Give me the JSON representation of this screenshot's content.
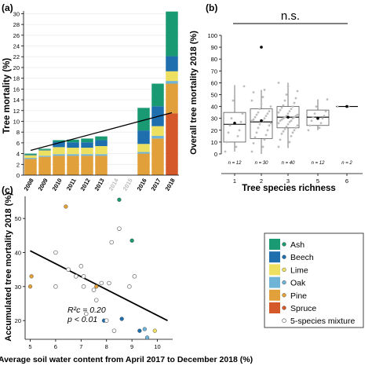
{
  "chart_data": [
    {
      "panel_label": "(a)",
      "type": "bar",
      "stacked": true,
      "ylabel": "Tree mortality (%)",
      "yticks": [
        "0",
        "2",
        "4",
        "6",
        "8",
        "10",
        "12",
        "14",
        "16",
        "18",
        "20",
        "22",
        "24",
        "26",
        "28",
        "30"
      ],
      "ylim": [
        0,
        30.5
      ],
      "categories": [
        "2008",
        "2009",
        "2010",
        "2011",
        "2012",
        "2013",
        "2014",
        "2015",
        "2016",
        "2017",
        "2018"
      ],
      "greyed_categories": [
        "2014",
        "2015"
      ],
      "series": [
        {
          "name": "Spruce",
          "color": "#d4582a",
          "values": [
            0,
            0,
            0,
            0,
            0,
            0,
            0,
            0,
            0,
            0,
            11.5
          ]
        },
        {
          "name": "Pine",
          "color": "#e2a03a",
          "values": [
            3.0,
            3.4,
            3.6,
            3.6,
            3.6,
            3.6,
            0,
            0,
            4.0,
            6.8,
            5.5
          ]
        },
        {
          "name": "Oak",
          "color": "#6fb3d6",
          "values": [
            0.2,
            0.2,
            0.3,
            0.3,
            0.3,
            0.3,
            0,
            0,
            0.3,
            0.5,
            0.5
          ]
        },
        {
          "name": "Lime",
          "color": "#ede060",
          "values": [
            0.5,
            1.0,
            1.3,
            1.2,
            1.2,
            1.5,
            0,
            0,
            1.5,
            1.8,
            1.8
          ]
        },
        {
          "name": "Beech",
          "color": "#1f6fae",
          "values": [
            0.1,
            0.1,
            1.0,
            1.0,
            1.0,
            1.1,
            0,
            0,
            2.5,
            3.7,
            2.8
          ]
        },
        {
          "name": "Ash",
          "color": "#1a9a72",
          "values": [
            0.2,
            0.2,
            0.3,
            0.5,
            0.7,
            0.7,
            0,
            0,
            4.2,
            4.2,
            8.3
          ]
        }
      ],
      "trend_line": {
        "x_from": "2008",
        "y_from": 4.6,
        "x_to": "2018",
        "y_to": 11.6
      }
    },
    {
      "panel_label": "(b)",
      "type": "box",
      "xlabel": "Tree species richness",
      "ylabel": "Overall tree mortality 2018 (%)",
      "ylim": [
        0,
        100
      ],
      "yticks": [
        "0",
        "10",
        "20",
        "30",
        "40",
        "50",
        "60",
        "70",
        "80",
        "90",
        "100"
      ],
      "categories": [
        "1",
        "2",
        "3",
        "5",
        "6"
      ],
      "n_labels": [
        "n = 12",
        "n = 30",
        "n = 40",
        "n = 12",
        "n = 2"
      ],
      "significance": "n.s.",
      "boxes": [
        {
          "q1": 10,
          "median": 25,
          "q3": 35,
          "low": 2,
          "high": 58,
          "mean": 26,
          "outliers": []
        },
        {
          "q1": 13,
          "median": 27,
          "q3": 38,
          "low": 0,
          "high": 54,
          "mean": 28,
          "outliers": [
            90
          ]
        },
        {
          "q1": 22,
          "median": 31,
          "q3": 40,
          "low": 5,
          "high": 60,
          "mean": 31,
          "outliers": []
        },
        {
          "q1": 24,
          "median": 31,
          "q3": 37,
          "low": 20,
          "high": 46,
          "mean": 30,
          "outliers": []
        },
        {
          "q1": 40,
          "median": 40,
          "q3": 40,
          "low": 40,
          "high": 40,
          "mean": 40,
          "outliers": []
        }
      ],
      "jitter": [
        [
          2,
          6,
          10,
          15,
          18,
          20,
          24,
          27,
          30,
          34,
          45,
          57
        ],
        [
          2,
          6,
          9,
          12,
          14,
          16,
          18,
          20,
          22,
          24,
          25,
          26,
          27,
          28,
          28,
          29,
          30,
          31,
          32,
          33,
          34,
          35,
          36,
          38,
          40,
          42,
          45,
          48,
          52,
          54
        ],
        [
          6,
          10,
          12,
          15,
          17,
          18,
          19,
          20,
          21,
          22,
          23,
          24,
          25,
          26,
          27,
          28,
          28,
          29,
          30,
          30,
          31,
          31,
          32,
          32,
          33,
          34,
          35,
          36,
          37,
          38,
          39,
          40,
          41,
          43,
          45,
          47,
          50,
          53,
          57,
          60
        ],
        [
          20,
          22,
          24,
          26,
          28,
          30,
          31,
          32,
          34,
          36,
          40,
          46
        ],
        [
          40,
          40
        ]
      ]
    },
    {
      "panel_label": "(c)",
      "type": "scatter",
      "xlabel": "Average soil water content  from April 2017 to December 2018 (%)",
      "ylabel": "Accumulated tree mortality 2018 (%)",
      "xlim": [
        4.8,
        10.6
      ],
      "ylim": [
        14.5,
        56.5
      ],
      "xticks": [
        5,
        6,
        7,
        8,
        9,
        10
      ],
      "yticks": [
        20,
        30,
        40,
        50
      ],
      "series": [
        {
          "name": "Ash",
          "color": "#1a9a72",
          "hollow": false,
          "points": [
            [
              8.5,
              55.5
            ],
            [
              9.0,
              43.5
            ]
          ]
        },
        {
          "name": "Beech",
          "color": "#1f6fae",
          "hollow": false,
          "points": [
            [
              7.9,
              20.0
            ],
            [
              8.6,
              20.5
            ],
            [
              9.3,
              17.0
            ]
          ]
        },
        {
          "name": "Lime",
          "color": "#ede060",
          "hollow": false,
          "points": [
            [
              9.9,
              17.0
            ]
          ]
        },
        {
          "name": "Oak",
          "color": "#6fb3d6",
          "hollow": false,
          "points": [
            [
              9.5,
              17.5
            ],
            [
              9.6,
              15.0
            ]
          ]
        },
        {
          "name": "Pine",
          "color": "#e2a03a",
          "hollow": false,
          "points": [
            [
              5.05,
              33.0
            ],
            [
              5.0,
              30.0
            ],
            [
              6.4,
              53.5
            ],
            [
              7.6,
              30.0
            ]
          ]
        },
        {
          "name": "Spruce",
          "color": "#d4582a",
          "hollow": false,
          "points": []
        },
        {
          "name": "5-species mixture",
          "color": "#ffffff",
          "hollow": true,
          "points": [
            [
              6.0,
              40.0
            ],
            [
              6.0,
              30.0
            ],
            [
              6.8,
              33.0
            ],
            [
              7.0,
              36.0
            ],
            [
              7.1,
              33.0
            ],
            [
              7.1,
              30.0
            ],
            [
              7.5,
              29.0
            ],
            [
              7.6,
              26.0
            ],
            [
              8.1,
              31.0
            ],
            [
              8.2,
              43.0
            ],
            [
              8.5,
              47.0
            ],
            [
              9.1,
              33.0
            ],
            [
              7.2,
              22.0
            ],
            [
              8.0,
              20.0
            ],
            [
              8.3,
              17.0
            ],
            [
              6.5,
              35.0
            ],
            [
              7.8,
              31.0
            ],
            [
              8.9,
              30.0
            ]
          ]
        }
      ],
      "regression": {
        "x_from": 5.0,
        "y_from": 40.5,
        "x_to": 10.4,
        "y_to": 20.0
      },
      "stats": {
        "r2": "R²c = 0.20",
        "p": "p < 0.01"
      }
    }
  ],
  "legend": {
    "items": [
      {
        "label": "Ash",
        "color": "#1a9a72",
        "hollow": false
      },
      {
        "label": "Beech",
        "color": "#1f6fae",
        "hollow": false
      },
      {
        "label": "Lime",
        "color": "#ede060",
        "hollow": false
      },
      {
        "label": "Oak",
        "color": "#6fb3d6",
        "hollow": false
      },
      {
        "label": "Pine",
        "color": "#e2a03a",
        "hollow": false
      },
      {
        "label": "Spruce",
        "color": "#d4582a",
        "hollow": false
      },
      {
        "label": "5-species mixture",
        "color": "#ffffff",
        "hollow": true
      }
    ]
  }
}
